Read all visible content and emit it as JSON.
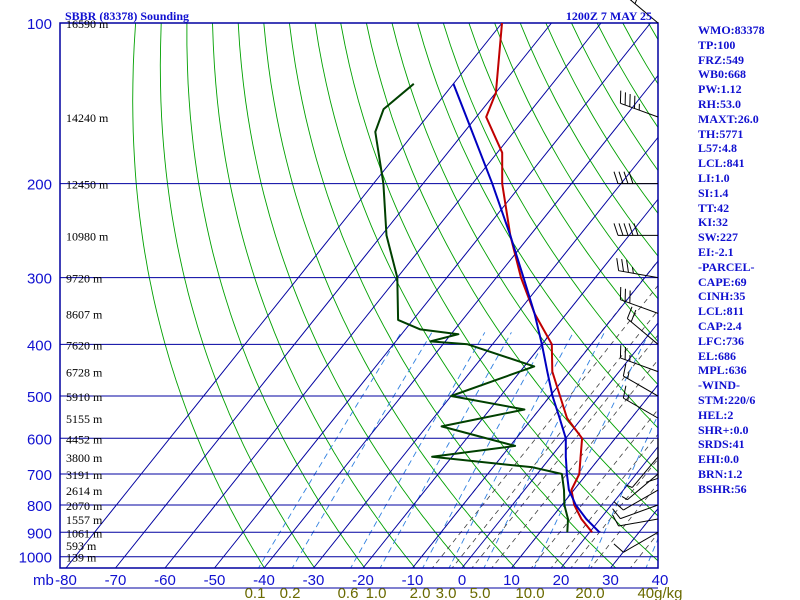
{
  "header": {
    "title": "SBBR (83378) Sounding",
    "time": "1200Z  7 MAY 25"
  },
  "colors": {
    "frame": "#0000a0",
    "temperature": "#c00000",
    "dewpoint": "#004000",
    "parcel": "#0000c0",
    "dry_adiabat": "#00a000",
    "moist_adiabat": "#404040",
    "mixing_ratio": "#3080e0",
    "label": "#1010d0",
    "mix_label": "#6a6a00"
  },
  "stats": [
    "WMO:83378",
    "TP:100",
    "FRZ:549",
    "WB0:668",
    "PW:1.12",
    "RH:53.0",
    "MAXT:26.0",
    "TH:5771",
    "L57:4.8",
    "LCL:841",
    "LI:1.0",
    "SI:1.4",
    "TT:42",
    "KI:32",
    "SW:227",
    "EI:-2.1",
    "-PARCEL-",
    "CAPE:69",
    "CINH:35",
    "LCL:811",
    "CAP:2.4",
    "LFC:736",
    "EL:686",
    "MPL:636",
    "-WIND-",
    "STM:220/6",
    "HEL:2",
    "SHR+:0.0",
    "SRDS:41",
    "EHI:0.0",
    "BRN:1.2",
    "BSHR:56"
  ],
  "chart_data": {
    "type": "line",
    "title": "SBBR (83378) Sounding",
    "xlabel": "",
    "ylabel": "mb",
    "x_unit": "°C",
    "x_range": [
      -80,
      40
    ],
    "pressure_range": [
      100,
      1000
    ],
    "grid": true,
    "pressure_ticks": [
      {
        "p": 100,
        "label": "100"
      },
      {
        "p": 200,
        "label": "200"
      },
      {
        "p": 300,
        "label": "300"
      },
      {
        "p": 400,
        "label": "400"
      },
      {
        "p": 500,
        "label": "500"
      },
      {
        "p": 600,
        "label": "600"
      },
      {
        "p": 700,
        "label": "700"
      },
      {
        "p": 800,
        "label": "800"
      },
      {
        "p": 900,
        "label": "900"
      },
      {
        "p": 1000,
        "label": "1000"
      }
    ],
    "height_labels": [
      {
        "p": 100,
        "label": "16590 m"
      },
      {
        "p": 150,
        "label": "14240 m"
      },
      {
        "p": 200,
        "label": "12450 m"
      },
      {
        "p": 250,
        "label": "10980 m"
      },
      {
        "p": 300,
        "label": "9720 m"
      },
      {
        "p": 350,
        "label": "8607 m"
      },
      {
        "p": 400,
        "label": "7620 m"
      },
      {
        "p": 450,
        "label": "6728 m"
      },
      {
        "p": 500,
        "label": "5910 m"
      },
      {
        "p": 550,
        "label": "5155 m"
      },
      {
        "p": 600,
        "label": "4452 m"
      },
      {
        "p": 650,
        "label": "3800 m"
      },
      {
        "p": 700,
        "label": "3191 m"
      },
      {
        "p": 750,
        "label": "2614 m"
      },
      {
        "p": 800,
        "label": "2070 m"
      },
      {
        "p": 850,
        "label": "1557 m"
      },
      {
        "p": 900,
        "label": "1061 m"
      },
      {
        "p": 950,
        "label": "593 m"
      },
      {
        "p": 1000,
        "label": "139 m"
      }
    ],
    "temp_ticks": [
      {
        "t": -80,
        "label": "-80"
      },
      {
        "t": -70,
        "label": "-70"
      },
      {
        "t": -60,
        "label": "-60"
      },
      {
        "t": -50,
        "label": "-50"
      },
      {
        "t": -40,
        "label": "-40"
      },
      {
        "t": -30,
        "label": "-30"
      },
      {
        "t": -20,
        "label": "-20"
      },
      {
        "t": -10,
        "label": "-10"
      },
      {
        "t": 0,
        "label": "0"
      },
      {
        "t": 10,
        "label": "10"
      },
      {
        "t": 20,
        "label": "20"
      },
      {
        "t": 30,
        "label": "30"
      },
      {
        "t": 40,
        "label": "40"
      }
    ],
    "mixing_ratio_labels": [
      {
        "label": "0.1",
        "pos": 255
      },
      {
        "label": "0.2",
        "pos": 290
      },
      {
        "label": "0.6",
        "pos": 348
      },
      {
        "label": "1.0",
        "pos": 376
      },
      {
        "label": "2.0",
        "pos": 420
      },
      {
        "label": "3.0",
        "pos": 446
      },
      {
        "label": "5.0",
        "pos": 480
      },
      {
        "label": "10.0",
        "pos": 530
      },
      {
        "label": "20.0",
        "pos": 590
      },
      {
        "label": "40g/kg",
        "pos": 660
      }
    ],
    "mixing_ratio_values": [
      0.1,
      0.2,
      0.6,
      1,
      2,
      3,
      5,
      10,
      20,
      40
    ],
    "series": [
      {
        "key": "temperature",
        "points": [
          {
            "p": 900,
            "t": 20.5
          },
          {
            "p": 850,
            "t": 16.2
          },
          {
            "p": 800,
            "t": 12.5
          },
          {
            "p": 750,
            "t": 9.5
          },
          {
            "p": 700,
            "t": 8.5
          },
          {
            "p": 650,
            "t": 6.0
          },
          {
            "p": 600,
            "t": 3.3
          },
          {
            "p": 550,
            "t": -3.0
          },
          {
            "p": 500,
            "t": -8.0
          },
          {
            "p": 450,
            "t": -13.5
          },
          {
            "p": 400,
            "t": -18.0
          },
          {
            "p": 350,
            "t": -26.5
          },
          {
            "p": 300,
            "t": -35.0
          },
          {
            "p": 250,
            "t": -44.0
          },
          {
            "p": 200,
            "t": -54.0
          },
          {
            "p": 175,
            "t": -59.0
          },
          {
            "p": 150,
            "t": -68.0
          },
          {
            "p": 135,
            "t": -70.0
          },
          {
            "p": 100,
            "t": -80.0
          }
        ]
      },
      {
        "key": "dewpoint",
        "points": [
          {
            "p": 900,
            "t": 15.5
          },
          {
            "p": 850,
            "t": 13.5
          },
          {
            "p": 800,
            "t": 10.5
          },
          {
            "p": 750,
            "t": 8.0
          },
          {
            "p": 700,
            "t": 5.0
          },
          {
            "p": 680,
            "t": -2.0
          },
          {
            "p": 650,
            "t": -24.0
          },
          {
            "p": 620,
            "t": -9.0
          },
          {
            "p": 570,
            "t": -27.0
          },
          {
            "p": 530,
            "t": -13.0
          },
          {
            "p": 500,
            "t": -30.0
          },
          {
            "p": 440,
            "t": -18.0
          },
          {
            "p": 400,
            "t": -35.0
          },
          {
            "p": 395,
            "t": -43.0
          },
          {
            "p": 383,
            "t": -38.5
          },
          {
            "p": 375,
            "t": -47.0
          },
          {
            "p": 360,
            "t": -53.0
          },
          {
            "p": 300,
            "t": -60.0
          },
          {
            "p": 250,
            "t": -69.0
          },
          {
            "p": 200,
            "t": -78.0
          },
          {
            "p": 160,
            "t": -88.0
          },
          {
            "p": 145,
            "t": -90.0
          },
          {
            "p": 130,
            "t": -88.0
          }
        ]
      },
      {
        "key": "parcel",
        "points": [
          {
            "p": 900,
            "t": 22.0
          },
          {
            "p": 850,
            "t": 17.2
          },
          {
            "p": 800,
            "t": 12.8
          },
          {
            "p": 750,
            "t": 9.0
          },
          {
            "p": 700,
            "t": 6.0
          },
          {
            "p": 650,
            "t": 3.0
          },
          {
            "p": 600,
            "t": 0.0
          },
          {
            "p": 550,
            "t": -4.5
          },
          {
            "p": 500,
            "t": -9.5
          },
          {
            "p": 450,
            "t": -14.5
          },
          {
            "p": 400,
            "t": -20.0
          },
          {
            "p": 350,
            "t": -26.5
          },
          {
            "p": 300,
            "t": -34.5
          },
          {
            "p": 250,
            "t": -44.0
          },
          {
            "p": 200,
            "t": -56.0
          },
          {
            "p": 150,
            "t": -72.0
          },
          {
            "p": 130,
            "t": -80.0
          }
        ]
      }
    ],
    "winds": [
      {
        "p": 900,
        "dir": 240,
        "spd": 10
      },
      {
        "p": 850,
        "dir": 260,
        "spd": 10
      },
      {
        "p": 800,
        "dir": 250,
        "spd": 10
      },
      {
        "p": 750,
        "dir": 240,
        "spd": 10
      },
      {
        "p": 700,
        "dir": 230,
        "spd": 5
      },
      {
        "p": 650,
        "dir": 220,
        "spd": 5
      },
      {
        "p": 600,
        "dir": 180,
        "spd": 10
      },
      {
        "p": 550,
        "dir": 300,
        "spd": 15
      },
      {
        "p": 500,
        "dir": 300,
        "spd": 15
      },
      {
        "p": 450,
        "dir": 290,
        "spd": 25
      },
      {
        "p": 400,
        "dir": 310,
        "spd": 20
      },
      {
        "p": 350,
        "dir": 290,
        "spd": 30
      },
      {
        "p": 300,
        "dir": 280,
        "spd": 35
      },
      {
        "p": 250,
        "dir": 270,
        "spd": 50
      },
      {
        "p": 200,
        "dir": 270,
        "spd": 40
      },
      {
        "p": 150,
        "dir": 290,
        "spd": 45
      },
      {
        "p": 100,
        "dir": 310,
        "spd": 25
      }
    ]
  }
}
